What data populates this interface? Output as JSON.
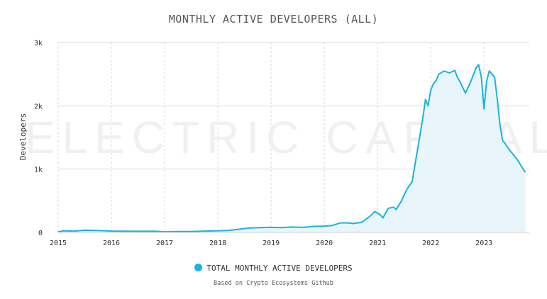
{
  "watermark": "ELECTRIC CAPITAL",
  "colors": {
    "line": "#1ab3dd",
    "fill": "#e8f6fc",
    "grid": "#d9d9d9",
    "watermark": "#f0f0f0"
  },
  "chart_data": {
    "type": "area",
    "title": "MONTHLY ACTIVE DEVELOPERS (ALL)",
    "subtitle": "",
    "xlabel": "",
    "ylabel": "Developers",
    "ylim": [
      0,
      3000
    ],
    "y_ticks": [
      0,
      1000,
      2000,
      3000
    ],
    "y_tick_labels": [
      "0",
      "1k",
      "2k",
      "3k"
    ],
    "xlim": [
      2015.0,
      2023.85
    ],
    "x_ticks": [
      2015,
      2016,
      2017,
      2018,
      2019,
      2020,
      2021,
      2022,
      2023
    ],
    "x_tick_labels": [
      "2015",
      "2016",
      "2017",
      "2018",
      "2019",
      "2020",
      "2021",
      "2022",
      "2023"
    ],
    "grid": true,
    "legend": "bottom-center",
    "source_note": "Based on Crypto Ecosystems Github",
    "series": [
      {
        "name": "TOTAL MONTHLY ACTIVE DEVELOPERS",
        "x": [
          2015.0,
          2015.1,
          2015.3,
          2015.5,
          2015.7,
          2015.9,
          2016.0,
          2016.2,
          2016.5,
          2016.8,
          2017.0,
          2017.2,
          2017.5,
          2017.7,
          2018.0,
          2018.2,
          2018.4,
          2018.6,
          2018.8,
          2019.0,
          2019.2,
          2019.4,
          2019.6,
          2019.8,
          2020.0,
          2020.15,
          2020.3,
          2020.45,
          2020.55,
          2020.7,
          2020.85,
          2020.95,
          2021.05,
          2021.1,
          2021.2,
          2021.3,
          2021.35,
          2021.45,
          2021.55,
          2021.65,
          2021.75,
          2021.85,
          2021.9,
          2021.95,
          2022.0,
          2022.05,
          2022.1,
          2022.15,
          2022.25,
          2022.35,
          2022.45,
          2022.5,
          2022.55,
          2022.65,
          2022.75,
          2022.85,
          2022.9,
          2022.95,
          2023.0,
          2023.05,
          2023.1,
          2023.15,
          2023.2,
          2023.25,
          2023.3,
          2023.35,
          2023.4,
          2023.5,
          2023.6,
          2023.7,
          2023.75,
          2023.78
        ],
        "y": [
          10,
          25,
          20,
          35,
          30,
          25,
          20,
          20,
          18,
          20,
          10,
          15,
          15,
          20,
          25,
          30,
          50,
          70,
          75,
          80,
          75,
          85,
          80,
          95,
          100,
          110,
          150,
          150,
          140,
          160,
          250,
          330,
          280,
          230,
          380,
          400,
          360,
          500,
          680,
          800,
          1300,
          1800,
          2100,
          2000,
          2250,
          2350,
          2400,
          2500,
          2550,
          2520,
          2560,
          2450,
          2380,
          2200,
          2380,
          2600,
          2650,
          2450,
          1950,
          2400,
          2550,
          2500,
          2450,
          2100,
          1700,
          1450,
          1400,
          1280,
          1180,
          1050,
          980,
          950
        ]
      }
    ]
  }
}
